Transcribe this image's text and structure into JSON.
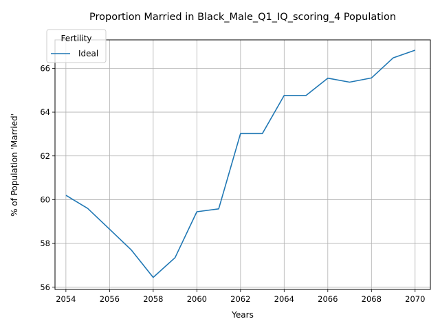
{
  "chart_data": {
    "type": "line",
    "title": "Proportion Married in Black_Male_Q1_IQ_scoring_4 Population",
    "xlabel": "Years",
    "ylabel": "% of Population 'Married'",
    "xlim": [
      2053.5,
      2070.7
    ],
    "ylim": [
      55.9,
      67.3
    ],
    "xticks": [
      2054,
      2056,
      2058,
      2060,
      2062,
      2064,
      2066,
      2068,
      2070
    ],
    "yticks": [
      56,
      58,
      60,
      62,
      64,
      66
    ],
    "grid": true,
    "legend": {
      "title": "Fertility",
      "placement": "top-left"
    },
    "series": [
      {
        "name": "Ideal",
        "color": "#1f77b4",
        "x": [
          2054,
          2055,
          2056,
          2057,
          2058,
          2059,
          2060,
          2061,
          2062,
          2063,
          2064,
          2065,
          2066,
          2067,
          2068,
          2069,
          2070
        ],
        "y": [
          60.2,
          59.6,
          58.65,
          57.7,
          56.45,
          57.35,
          59.45,
          59.58,
          63.02,
          63.02,
          64.76,
          64.76,
          65.55,
          65.37,
          65.56,
          66.48,
          66.83
        ]
      }
    ]
  }
}
